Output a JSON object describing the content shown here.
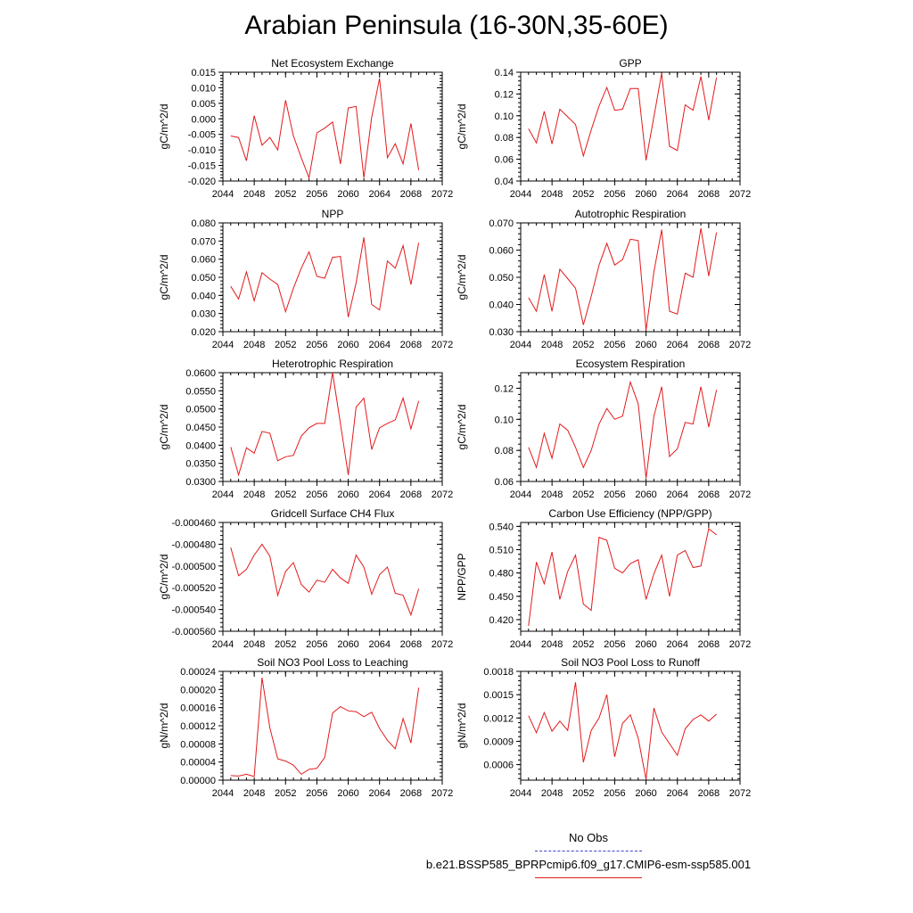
{
  "figure": {
    "title": "Arabian Peninsula (16-30N,35-60E)",
    "series_color": "#e31a1c",
    "legend": [
      {
        "label": "No Obs",
        "style": "dashed",
        "color": "#3b44cc"
      },
      {
        "label": "b.e21.BSSP585_BPRPcmip6.f09_g17.CMIP6-esm-ssp585.001",
        "style": "solid",
        "color": "#e31a1c"
      }
    ]
  },
  "chart_data": [
    {
      "type": "line",
      "title": "Net Ecosystem Exchange",
      "ylabel": "gC/m^2/d",
      "xlim": [
        2044,
        2072
      ],
      "xticks": [
        "2044",
        "2048",
        "2052",
        "2056",
        "2060",
        "2064",
        "2068",
        "2072"
      ],
      "ylim": [
        -0.02,
        0.015
      ],
      "yticks": [
        "-0.020",
        "-0.015",
        "-0.010",
        "-0.005",
        "0.000",
        "0.005",
        "0.010",
        "0.015"
      ],
      "x": [
        2045,
        2046,
        2047,
        2048,
        2049,
        2050,
        2051,
        2052,
        2053,
        2054,
        2055,
        2056,
        2057,
        2058,
        2059,
        2060,
        2061,
        2062,
        2063,
        2064,
        2065,
        2066,
        2067,
        2068,
        2069
      ],
      "values": [
        -0.0055,
        -0.006,
        -0.0135,
        0.001,
        -0.0085,
        -0.006,
        -0.01,
        0.006,
        -0.0055,
        -0.0125,
        -0.019,
        -0.0045,
        -0.003,
        -0.001,
        -0.0145,
        0.0035,
        0.004,
        -0.019,
        0.0005,
        0.013,
        -0.0125,
        -0.008,
        -0.0145,
        -0.0015,
        -0.0165
      ]
    },
    {
      "type": "line",
      "title": "GPP",
      "ylabel": "gC/m^2/d",
      "xlim": [
        2044,
        2072
      ],
      "xticks": [
        "2044",
        "2048",
        "2052",
        "2056",
        "2060",
        "2064",
        "2068",
        "2072"
      ],
      "ylim": [
        0.04,
        0.14
      ],
      "yticks": [
        "0.04",
        "0.06",
        "0.08",
        "0.10",
        "0.12",
        "0.14"
      ],
      "x": [
        2045,
        2046,
        2047,
        2048,
        2049,
        2050,
        2051,
        2052,
        2053,
        2054,
        2055,
        2056,
        2057,
        2058,
        2059,
        2060,
        2061,
        2062,
        2063,
        2064,
        2065,
        2066,
        2067,
        2068,
        2069
      ],
      "values": [
        0.088,
        0.075,
        0.104,
        0.074,
        0.106,
        0.099,
        0.092,
        0.063,
        0.087,
        0.109,
        0.126,
        0.105,
        0.106,
        0.125,
        0.125,
        0.059,
        0.099,
        0.139,
        0.072,
        0.068,
        0.11,
        0.105,
        0.136,
        0.096,
        0.135
      ]
    },
    {
      "type": "line",
      "title": "NPP",
      "ylabel": "gC/m^2/d",
      "xlim": [
        2044,
        2072
      ],
      "xticks": [
        "2044",
        "2048",
        "2052",
        "2056",
        "2060",
        "2064",
        "2068",
        "2072"
      ],
      "ylim": [
        0.02,
        0.08
      ],
      "yticks": [
        "0.020",
        "0.030",
        "0.040",
        "0.050",
        "0.060",
        "0.070",
        "0.080"
      ],
      "x": [
        2045,
        2046,
        2047,
        2048,
        2049,
        2050,
        2051,
        2052,
        2053,
        2054,
        2055,
        2056,
        2057,
        2058,
        2059,
        2060,
        2061,
        2062,
        2063,
        2064,
        2065,
        2066,
        2067,
        2068,
        2069
      ],
      "values": [
        0.045,
        0.038,
        0.053,
        0.037,
        0.0525,
        0.049,
        0.046,
        0.031,
        0.044,
        0.055,
        0.064,
        0.0505,
        0.0495,
        0.061,
        0.0615,
        0.028,
        0.047,
        0.072,
        0.035,
        0.032,
        0.059,
        0.055,
        0.0675,
        0.046,
        0.069
      ]
    },
    {
      "type": "line",
      "title": "Autotrophic Respiration",
      "ylabel": "gC/m^2/d",
      "xlim": [
        2044,
        2072
      ],
      "xticks": [
        "2044",
        "2048",
        "2052",
        "2056",
        "2060",
        "2064",
        "2068",
        "2072"
      ],
      "ylim": [
        0.03,
        0.07
      ],
      "yticks": [
        "0.030",
        "0.040",
        "0.050",
        "0.060",
        "0.070"
      ],
      "x": [
        2045,
        2046,
        2047,
        2048,
        2049,
        2050,
        2051,
        2052,
        2053,
        2054,
        2055,
        2056,
        2057,
        2058,
        2059,
        2060,
        2061,
        2062,
        2063,
        2064,
        2065,
        2066,
        2067,
        2068,
        2069
      ],
      "values": [
        0.0425,
        0.0375,
        0.051,
        0.0375,
        0.053,
        0.0495,
        0.046,
        0.0325,
        0.043,
        0.0545,
        0.0625,
        0.0545,
        0.0565,
        0.064,
        0.0635,
        0.0305,
        0.052,
        0.0675,
        0.0375,
        0.0365,
        0.0515,
        0.05,
        0.068,
        0.0505,
        0.0665
      ]
    },
    {
      "type": "line",
      "title": "Heterotrophic Respiration",
      "ylabel": "gC/m^2/d",
      "xlim": [
        2044,
        2072
      ],
      "xticks": [
        "2044",
        "2048",
        "2052",
        "2056",
        "2060",
        "2064",
        "2068",
        "2072"
      ],
      "ylim": [
        0.03,
        0.06
      ],
      "yticks": [
        "0.0300",
        "0.0350",
        "0.0400",
        "0.0450",
        "0.0500",
        "0.0550",
        "0.0600"
      ],
      "x": [
        2045,
        2046,
        2047,
        2048,
        2049,
        2050,
        2051,
        2052,
        2053,
        2054,
        2055,
        2056,
        2057,
        2058,
        2059,
        2060,
        2061,
        2062,
        2063,
        2064,
        2065,
        2066,
        2067,
        2068,
        2069
      ],
      "values": [
        0.0395,
        0.0318,
        0.0393,
        0.0378,
        0.0438,
        0.0433,
        0.0357,
        0.0368,
        0.0372,
        0.0425,
        0.0448,
        0.046,
        0.046,
        0.06,
        0.046,
        0.0318,
        0.0505,
        0.053,
        0.0388,
        0.0448,
        0.046,
        0.047,
        0.053,
        0.0445,
        0.0522
      ]
    },
    {
      "type": "line",
      "title": "Ecosystem Respiration",
      "ylabel": "gC/m^2/d",
      "xlim": [
        2044,
        2072
      ],
      "xticks": [
        "2044",
        "2048",
        "2052",
        "2056",
        "2060",
        "2064",
        "2068",
        "2072"
      ],
      "ylim": [
        0.06,
        0.13
      ],
      "yticks": [
        "0.06",
        "0.08",
        "0.10",
        "0.12"
      ],
      "x": [
        2045,
        2046,
        2047,
        2048,
        2049,
        2050,
        2051,
        2052,
        2053,
        2054,
        2055,
        2056,
        2057,
        2058,
        2059,
        2060,
        2061,
        2062,
        2063,
        2064,
        2065,
        2066,
        2067,
        2068,
        2069
      ],
      "values": [
        0.082,
        0.069,
        0.091,
        0.075,
        0.097,
        0.093,
        0.082,
        0.069,
        0.08,
        0.097,
        0.107,
        0.1,
        0.102,
        0.124,
        0.11,
        0.062,
        0.102,
        0.121,
        0.076,
        0.081,
        0.098,
        0.097,
        0.121,
        0.095,
        0.119
      ]
    },
    {
      "type": "line",
      "title": "Gridcell Surface CH4 Flux",
      "ylabel": "gC/m^2/d",
      "xlim": [
        2044,
        2072
      ],
      "xticks": [
        "2044",
        "2048",
        "2052",
        "2056",
        "2060",
        "2064",
        "2068",
        "2072"
      ],
      "ylim": [
        -0.00056,
        -0.00046
      ],
      "yticks": [
        "-0.000560",
        "-0.000540",
        "-0.000520",
        "-0.000500",
        "-0.000480",
        "-0.000460"
      ],
      "x": [
        2045,
        2046,
        2047,
        2048,
        2049,
        2050,
        2051,
        2052,
        2053,
        2054,
        2055,
        2056,
        2057,
        2058,
        2059,
        2060,
        2061,
        2062,
        2063,
        2064,
        2065,
        2066,
        2067,
        2068,
        2069
      ],
      "values": [
        -0.000483,
        -0.000509,
        -0.000503,
        -0.00049,
        -0.00048,
        -0.000491,
        -0.000527,
        -0.000505,
        -0.000497,
        -0.000517,
        -0.000524,
        -0.000513,
        -0.000515,
        -0.000503,
        -0.000511,
        -0.000516,
        -0.00049,
        -0.000501,
        -0.000526,
        -0.000508,
        -0.000501,
        -0.000525,
        -0.000527,
        -0.000545,
        -0.000521
      ]
    },
    {
      "type": "line",
      "title": "Carbon Use Efficiency (NPP/GPP)",
      "ylabel": "NPP/GPP",
      "xlim": [
        2044,
        2072
      ],
      "xticks": [
        "2044",
        "2048",
        "2052",
        "2056",
        "2060",
        "2064",
        "2068",
        "2072"
      ],
      "ylim": [
        0.405,
        0.545
      ],
      "yticks": [
        "0.420",
        "0.450",
        "0.480",
        "0.510",
        "0.540"
      ],
      "x": [
        2045,
        2046,
        2047,
        2048,
        2049,
        2050,
        2051,
        2052,
        2053,
        2054,
        2055,
        2056,
        2057,
        2058,
        2059,
        2060,
        2061,
        2062,
        2063,
        2064,
        2065,
        2066,
        2067,
        2068,
        2069
      ],
      "values": [
        0.412,
        0.494,
        0.466,
        0.507,
        0.446,
        0.482,
        0.503,
        0.44,
        0.432,
        0.526,
        0.522,
        0.486,
        0.48,
        0.492,
        0.497,
        0.446,
        0.479,
        0.503,
        0.45,
        0.503,
        0.509,
        0.487,
        0.489,
        0.537,
        0.529
      ]
    },
    {
      "type": "line",
      "title": "Soil NO3 Pool Loss to Leaching",
      "ylabel": "gN/m^2/d",
      "xlim": [
        2044,
        2072
      ],
      "xticks": [
        "2044",
        "2048",
        "2052",
        "2056",
        "2060",
        "2064",
        "2068",
        "2072"
      ],
      "ylim": [
        0,
        0.00024
      ],
      "yticks": [
        "0.00000",
        "0.00004",
        "0.00008",
        "0.00012",
        "0.00016",
        "0.00020",
        "0.00024"
      ],
      "x": [
        2045,
        2046,
        2047,
        2048,
        2049,
        2050,
        2051,
        2052,
        2053,
        2054,
        2055,
        2056,
        2057,
        2058,
        2059,
        2060,
        2061,
        2062,
        2063,
        2064,
        2065,
        2066,
        2067,
        2068,
        2069
      ],
      "values": [
        1e-05,
        9e-06,
        1.3e-05,
        8e-06,
        0.000226,
        0.000115,
        4.7e-05,
        4.2e-05,
        3.3e-05,
        1.3e-05,
        2.4e-05,
        2.6e-05,
        5e-05,
        0.000148,
        0.000162,
        0.000153,
        0.000151,
        0.00014,
        0.00015,
        0.000114,
        8.8e-05,
        6.9e-05,
        0.000136,
        8.2e-05,
        0.000204
      ]
    },
    {
      "type": "line",
      "title": "Soil NO3 Pool Loss to Runoff",
      "ylabel": "gN/m^2/d",
      "xlim": [
        2044,
        2072
      ],
      "xticks": [
        "2044",
        "2048",
        "2052",
        "2056",
        "2060",
        "2064",
        "2068",
        "2072"
      ],
      "ylim": [
        0.0004,
        0.0018
      ],
      "yticks": [
        "0.0006",
        "0.0009",
        "0.0012",
        "0.0015",
        "0.0018"
      ],
      "x": [
        2045,
        2046,
        2047,
        2048,
        2049,
        2050,
        2051,
        2052,
        2053,
        2054,
        2055,
        2056,
        2057,
        2058,
        2059,
        2060,
        2061,
        2062,
        2063,
        2064,
        2065,
        2066,
        2067,
        2068,
        2069
      ],
      "values": [
        0.00123,
        0.00101,
        0.00127,
        0.00103,
        0.00116,
        0.00104,
        0.00166,
        0.00063,
        0.00104,
        0.0012,
        0.0015,
        0.0007,
        0.00113,
        0.00124,
        0.00094,
        0.00041,
        0.00133,
        0.00102,
        0.00087,
        0.00072,
        0.00106,
        0.00118,
        0.00124,
        0.00116,
        0.00125
      ]
    }
  ]
}
